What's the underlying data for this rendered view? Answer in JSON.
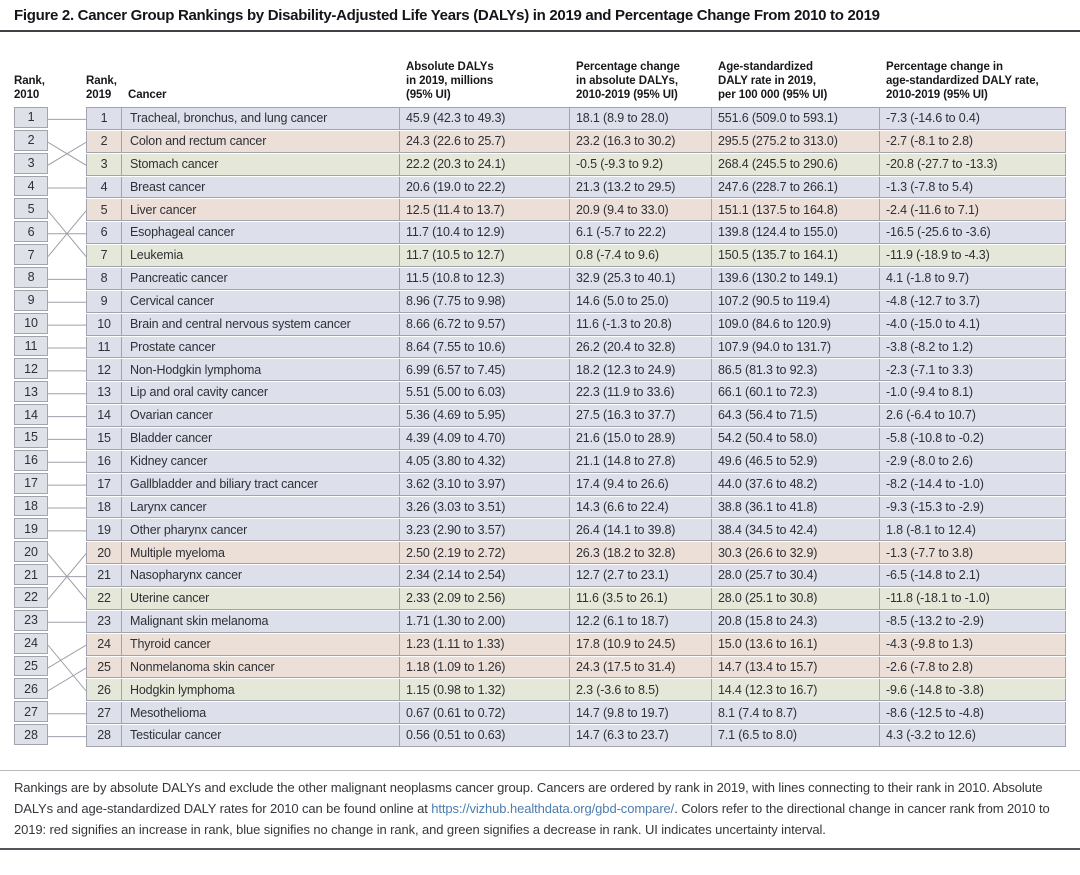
{
  "figure": {
    "title": "Figure 2. Cancer Group Rankings by Disability-Adjusted Life Years (DALYs) in 2019 and Percentage Change From 2010 to 2019"
  },
  "colors": {
    "increase": "#ecdfd8",
    "no_change": "#dde0ea",
    "decrease": "#e5e8d8",
    "rank_2010_cell": "#dfe1e9",
    "grid_line": "#a2a4ad",
    "link": "#4d7cae"
  },
  "table": {
    "headers": {
      "rank_2010": "Rank,\n2010",
      "rank_2019": "Rank,\n2019",
      "cancer": "Cancer",
      "dalys": "Absolute DALYs\nin 2019, millions\n(95% UI)",
      "pct_dalys": "Percentage change\nin absolute DALYs,\n2010-2019 (95% UI)",
      "rate": "Age-standardized\nDALY rate in 2019,\nper 100 000 (95% UI)",
      "pct_rate": "Percentage change in\nage-standardized DALY rate,\n2010-2019 (95% UI)"
    },
    "rows": [
      {
        "rank_2010": 1,
        "rank_2019": 1,
        "cancer": "Tracheal, bronchus, and lung cancer",
        "dalys": "45.9 (42.3 to 49.3)",
        "pct_dalys": "18.1 (8.9 to 28.0)",
        "rate": "551.6 (509.0 to 593.1)",
        "pct_rate": "-7.3 (-14.6 to 0.4)",
        "change": "no_change"
      },
      {
        "rank_2010": 3,
        "rank_2019": 2,
        "cancer": "Colon and rectum cancer",
        "dalys": "24.3 (22.6 to 25.7)",
        "pct_dalys": "23.2 (16.3 to 30.2)",
        "rate": "295.5 (275.2 to 313.0)",
        "pct_rate": "-2.7 (-8.1 to 2.8)",
        "change": "increase"
      },
      {
        "rank_2010": 2,
        "rank_2019": 3,
        "cancer": "Stomach cancer",
        "dalys": "22.2 (20.3 to 24.1)",
        "pct_dalys": "-0.5 (-9.3 to 9.2)",
        "rate": "268.4 (245.5 to 290.6)",
        "pct_rate": "-20.8 (-27.7 to -13.3)",
        "change": "decrease"
      },
      {
        "rank_2010": 4,
        "rank_2019": 4,
        "cancer": "Breast cancer",
        "dalys": "20.6 (19.0 to 22.2)",
        "pct_dalys": "21.3 (13.2 to 29.5)",
        "rate": "247.6 (228.7 to 266.1)",
        "pct_rate": "-1.3 (-7.8 to 5.4)",
        "change": "no_change"
      },
      {
        "rank_2010": 7,
        "rank_2019": 5,
        "cancer": "Liver cancer",
        "dalys": "12.5 (11.4 to 13.7)",
        "pct_dalys": "20.9 (9.4 to 33.0)",
        "rate": "151.1 (137.5 to 164.8)",
        "pct_rate": "-2.4 (-11.6 to 7.1)",
        "change": "increase"
      },
      {
        "rank_2010": 6,
        "rank_2019": 6,
        "cancer": "Esophageal cancer",
        "dalys": "11.7 (10.4 to 12.9)",
        "pct_dalys": "6.1 (-5.7 to 22.2)",
        "rate": "139.8 (124.4 to 155.0)",
        "pct_rate": "-16.5 (-25.6 to -3.6)",
        "change": "no_change"
      },
      {
        "rank_2010": 5,
        "rank_2019": 7,
        "cancer": "Leukemia",
        "dalys": "11.7 (10.5 to 12.7)",
        "pct_dalys": "0.8 (-7.4 to 9.6)",
        "rate": "150.5 (135.7 to 164.1)",
        "pct_rate": "-11.9 (-18.9 to -4.3)",
        "change": "decrease"
      },
      {
        "rank_2010": 8,
        "rank_2019": 8,
        "cancer": "Pancreatic cancer",
        "dalys": "11.5 (10.8 to 12.3)",
        "pct_dalys": "32.9 (25.3 to 40.1)",
        "rate": "139.6 (130.2 to 149.1)",
        "pct_rate": "4.1 (-1.8 to 9.7)",
        "change": "no_change"
      },
      {
        "rank_2010": 9,
        "rank_2019": 9,
        "cancer": "Cervical cancer",
        "dalys": "8.96 (7.75 to 9.98)",
        "pct_dalys": "14.6 (5.0 to 25.0)",
        "rate": "107.2 (90.5 to 119.4)",
        "pct_rate": "-4.8 (-12.7 to 3.7)",
        "change": "no_change"
      },
      {
        "rank_2010": 10,
        "rank_2019": 10,
        "cancer": "Brain and central nervous system cancer",
        "dalys": "8.66 (6.72 to 9.57)",
        "pct_dalys": "11.6 (-1.3 to 20.8)",
        "rate": "109.0 (84.6 to 120.9)",
        "pct_rate": "-4.0 (-15.0 to 4.1)",
        "change": "no_change"
      },
      {
        "rank_2010": 11,
        "rank_2019": 11,
        "cancer": "Prostate cancer",
        "dalys": "8.64 (7.55 to 10.6)",
        "pct_dalys": "26.2 (20.4 to 32.8)",
        "rate": "107.9 (94.0 to 131.7)",
        "pct_rate": "-3.8 (-8.2 to 1.2)",
        "change": "no_change"
      },
      {
        "rank_2010": 12,
        "rank_2019": 12,
        "cancer": "Non-Hodgkin lymphoma",
        "dalys": "6.99 (6.57 to 7.45)",
        "pct_dalys": "18.2 (12.3 to 24.9)",
        "rate": "86.5 (81.3 to 92.3)",
        "pct_rate": "-2.3 (-7.1 to 3.3)",
        "change": "no_change"
      },
      {
        "rank_2010": 13,
        "rank_2019": 13,
        "cancer": "Lip and oral cavity cancer",
        "dalys": "5.51 (5.00 to 6.03)",
        "pct_dalys": "22.3 (11.9 to 33.6)",
        "rate": "66.1 (60.1 to 72.3)",
        "pct_rate": "-1.0 (-9.4 to 8.1)",
        "change": "no_change"
      },
      {
        "rank_2010": 14,
        "rank_2019": 14,
        "cancer": "Ovarian cancer",
        "dalys": "5.36 (4.69 to 5.95)",
        "pct_dalys": "27.5 (16.3 to 37.7)",
        "rate": "64.3 (56.4 to 71.5)",
        "pct_rate": "2.6 (-6.4 to 10.7)",
        "change": "no_change"
      },
      {
        "rank_2010": 15,
        "rank_2019": 15,
        "cancer": "Bladder cancer",
        "dalys": "4.39 (4.09 to 4.70)",
        "pct_dalys": "21.6 (15.0 to 28.9)",
        "rate": "54.2 (50.4 to 58.0)",
        "pct_rate": "-5.8 (-10.8 to -0.2)",
        "change": "no_change"
      },
      {
        "rank_2010": 16,
        "rank_2019": 16,
        "cancer": "Kidney cancer",
        "dalys": "4.05 (3.80 to 4.32)",
        "pct_dalys": "21.1 (14.8 to 27.8)",
        "rate": "49.6 (46.5 to 52.9)",
        "pct_rate": "-2.9 (-8.0 to 2.6)",
        "change": "no_change"
      },
      {
        "rank_2010": 17,
        "rank_2019": 17,
        "cancer": "Gallbladder and biliary tract cancer",
        "dalys": "3.62 (3.10 to 3.97)",
        "pct_dalys": "17.4 (9.4 to 26.6)",
        "rate": "44.0 (37.6 to 48.2)",
        "pct_rate": "-8.2 (-14.4 to -1.0)",
        "change": "no_change"
      },
      {
        "rank_2010": 18,
        "rank_2019": 18,
        "cancer": "Larynx cancer",
        "dalys": "3.26 (3.03 to 3.51)",
        "pct_dalys": "14.3 (6.6 to 22.4)",
        "rate": "38.8 (36.1 to 41.8)",
        "pct_rate": "-9.3 (-15.3 to -2.9)",
        "change": "no_change"
      },
      {
        "rank_2010": 19,
        "rank_2019": 19,
        "cancer": "Other pharynx cancer",
        "dalys": "3.23 (2.90 to 3.57)",
        "pct_dalys": "26.4 (14.1 to 39.8)",
        "rate": "38.4 (34.5 to 42.4)",
        "pct_rate": "1.8 (-8.1 to 12.4)",
        "change": "no_change"
      },
      {
        "rank_2010": 22,
        "rank_2019": 20,
        "cancer": "Multiple myeloma",
        "dalys": "2.50 (2.19 to 2.72)",
        "pct_dalys": "26.3 (18.2 to 32.8)",
        "rate": "30.3 (26.6 to 32.9)",
        "pct_rate": "-1.3 (-7.7 to 3.8)",
        "change": "increase"
      },
      {
        "rank_2010": 21,
        "rank_2019": 21,
        "cancer": "Nasopharynx cancer",
        "dalys": "2.34 (2.14 to 2.54)",
        "pct_dalys": "12.7 (2.7 to 23.1)",
        "rate": "28.0 (25.7 to 30.4)",
        "pct_rate": "-6.5 (-14.8 to 2.1)",
        "change": "no_change"
      },
      {
        "rank_2010": 20,
        "rank_2019": 22,
        "cancer": "Uterine cancer",
        "dalys": "2.33 (2.09 to 2.56)",
        "pct_dalys": "11.6 (3.5 to 26.1)",
        "rate": "28.0 (25.1 to 30.8)",
        "pct_rate": "-11.8 (-18.1 to -1.0)",
        "change": "decrease"
      },
      {
        "rank_2010": 23,
        "rank_2019": 23,
        "cancer": "Malignant skin melanoma",
        "dalys": "1.71 (1.30 to 2.00)",
        "pct_dalys": "12.2 (6.1 to 18.7)",
        "rate": "20.8 (15.8 to 24.3)",
        "pct_rate": "-8.5 (-13.2 to -2.9)",
        "change": "no_change"
      },
      {
        "rank_2010": 25,
        "rank_2019": 24,
        "cancer": "Thyroid cancer",
        "dalys": "1.23 (1.11 to 1.33)",
        "pct_dalys": "17.8 (10.9 to 24.5)",
        "rate": "15.0 (13.6 to 16.1)",
        "pct_rate": "-4.3 (-9.8 to 1.3)",
        "change": "increase"
      },
      {
        "rank_2010": 26,
        "rank_2019": 25,
        "cancer": "Nonmelanoma skin cancer",
        "dalys": "1.18 (1.09 to 1.26)",
        "pct_dalys": "24.3 (17.5 to 31.4)",
        "rate": "14.7 (13.4 to 15.7)",
        "pct_rate": "-2.6 (-7.8 to 2.8)",
        "change": "increase"
      },
      {
        "rank_2010": 24,
        "rank_2019": 26,
        "cancer": "Hodgkin lymphoma",
        "dalys": "1.15 (0.98 to 1.32)",
        "pct_dalys": "2.3 (-3.6 to 8.5)",
        "rate": "14.4 (12.3 to 16.7)",
        "pct_rate": "-9.6 (-14.8 to -3.8)",
        "change": "decrease"
      },
      {
        "rank_2010": 27,
        "rank_2019": 27,
        "cancer": "Mesothelioma",
        "dalys": "0.67 (0.61 to 0.72)",
        "pct_dalys": "14.7 (9.8 to 19.7)",
        "rate": "8.1 (7.4 to 8.7)",
        "pct_rate": "-8.6 (-12.5 to -4.8)",
        "change": "no_change"
      },
      {
        "rank_2010": 28,
        "rank_2019": 28,
        "cancer": "Testicular cancer",
        "dalys": "0.56 (0.51 to 0.63)",
        "pct_dalys": "14.7 (6.3 to 23.7)",
        "rate": "7.1 (6.5 to 8.0)",
        "pct_rate": "4.3 (-3.2 to 12.6)",
        "change": "no_change"
      }
    ]
  },
  "footnote": {
    "text_before_link": "Rankings are by absolute DALYs and exclude the other malignant neoplasms cancer group. Cancers are ordered by rank in 2019, with lines connecting to their rank in 2010. Absolute DALYs and age-standardized DALY rates for 2010 can be found online at ",
    "link": "https://vizhub.healthdata.org/gbd-compare/",
    "text_after_link": ". Colors refer to the directional change in cancer rank from 2010 to 2019: red signifies an increase in rank, blue signifies no change in rank, and green signifies a decrease in rank. UI indicates uncertainty interval."
  }
}
